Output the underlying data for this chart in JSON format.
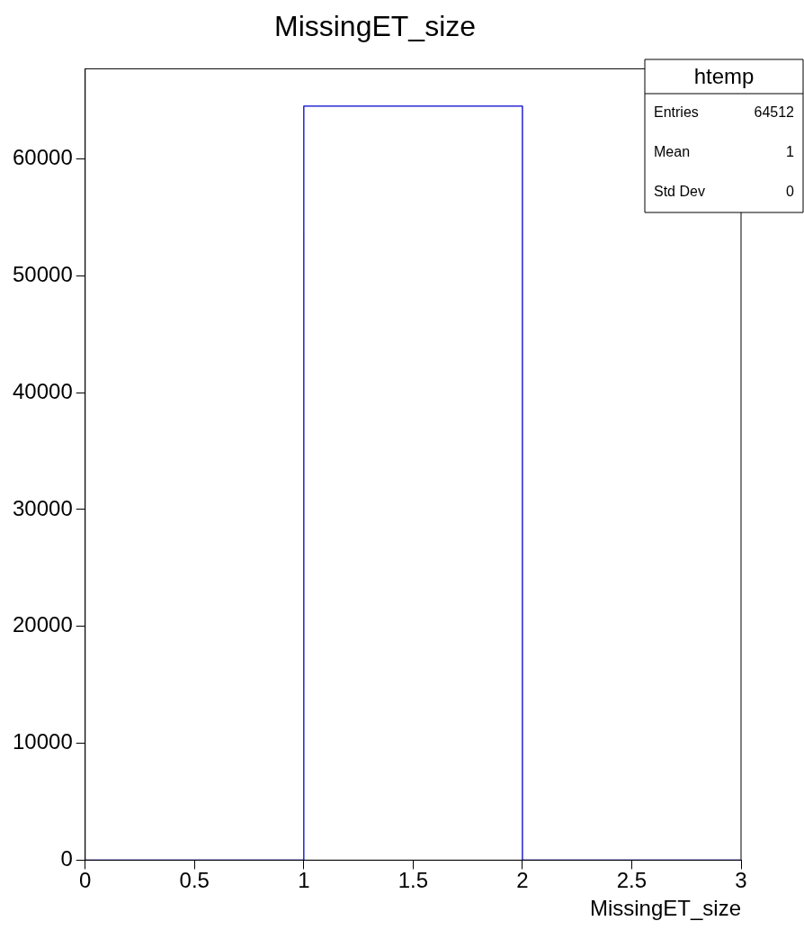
{
  "chart_data": {
    "type": "histogram",
    "title": "MissingET_size",
    "xlabel": "MissingET_size",
    "bins": [
      0,
      1,
      2,
      3
    ],
    "values": [
      0,
      64512,
      0
    ],
    "color": "#0000cc",
    "xlim": [
      0,
      3
    ],
    "xticks": [
      0,
      0.5,
      1,
      1.5,
      2,
      2.5,
      3
    ],
    "ylim": [
      0,
      67700
    ],
    "yticks": [
      0,
      10000,
      20000,
      30000,
      40000,
      50000,
      60000
    ],
    "annotations": [
      "htemp",
      "Entries",
      "64512",
      "Mean",
      "1",
      "Std Dev",
      "0"
    ]
  }
}
